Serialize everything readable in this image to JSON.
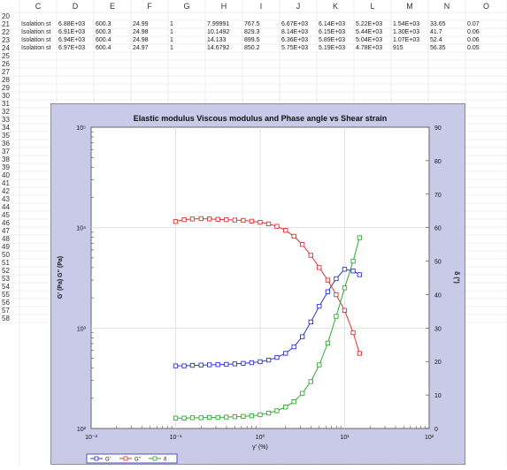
{
  "sheet": {
    "columns": [
      "C",
      "D",
      "E",
      "F",
      "G",
      "H",
      "I",
      "J",
      "K",
      "L",
      "M",
      "N",
      "O"
    ],
    "rows": [
      20,
      21,
      22,
      23,
      24,
      25,
      26,
      27,
      28,
      29,
      30,
      31,
      32,
      33,
      34,
      35,
      36,
      37,
      38,
      39,
      40,
      41,
      42,
      43,
      44,
      45,
      46,
      47,
      48,
      49,
      50,
      51,
      52,
      53,
      54,
      55,
      56,
      57,
      58
    ],
    "data_rows": [
      {
        "row": 21,
        "cells": [
          "Isolation st",
          "6.88E+03",
          "600.3",
          "24.99",
          "1",
          "7.99991",
          "767.5",
          "6.67E+03",
          "6.14E+03",
          "5.22E+03",
          "1.54E+03",
          "33.65",
          "0.07"
        ]
      },
      {
        "row": 22,
        "cells": [
          "Isolation st",
          "6.91E+03",
          "600.3",
          "24.98",
          "1",
          "10.1492",
          "829.3",
          "8.14E+03",
          "6.15E+03",
          "5.44E+03",
          "1.30E+03",
          "41.7",
          "0.06"
        ]
      },
      {
        "row": 23,
        "cells": [
          "Isolation st",
          "6.94E+03",
          "600.4",
          "24.98",
          "1",
          "14.133",
          "899.5",
          "6.36E+03",
          "5.89E+03",
          "5.04E+03",
          "1.07E+03",
          "52.4",
          "0.06"
        ]
      },
      {
        "row": 24,
        "cells": [
          "Isolation st",
          "6.97E+03",
          "600.4",
          "24.97",
          "1",
          "14.6792",
          "850.2",
          "5.75E+03",
          "5.19E+03",
          "4.78E+03",
          "915",
          "56.35",
          "0.05"
        ]
      }
    ]
  },
  "chart_data": {
    "type": "line",
    "title": "Elastic modulus Viscous modulus and Phase angle vs Shear strain",
    "xlabel": "γ' (%)",
    "ylabel": "G' (Pa) G'' (Pa)",
    "y2label": "δ (°)",
    "x_log": true,
    "y_log": true,
    "xlim": [
      0.01,
      100
    ],
    "ylim": [
      100,
      100000
    ],
    "y2lim": [
      0,
      90
    ],
    "x_ticks": [
      "10⁻²",
      "10⁻¹",
      "10⁰",
      "10¹",
      "10²"
    ],
    "y_ticks": [
      "10²",
      "10³",
      "10⁴",
      "10⁵"
    ],
    "y2_ticks": [
      "0",
      "10",
      "20",
      "30",
      "40",
      "50",
      "60",
      "70",
      "80",
      "90"
    ],
    "grid": true,
    "legend": "bottom-left",
    "x": [
      0.1,
      0.126,
      0.158,
      0.2,
      0.251,
      0.316,
      0.398,
      0.501,
      0.631,
      0.794,
      1.0,
      1.26,
      1.58,
      2.0,
      2.51,
      3.16,
      3.98,
      5.01,
      6.31,
      7.94,
      10.0,
      12.6,
      15.0
    ],
    "series": [
      {
        "name": "G'",
        "color": "#3333cc",
        "axis": "y",
        "values": [
          420,
          420,
          425,
          428,
          430,
          432,
          435,
          440,
          445,
          452,
          462,
          480,
          510,
          560,
          650,
          820,
          1150,
          1650,
          2300,
          3100,
          3850,
          3700,
          3400
        ]
      },
      {
        "name": "G''",
        "color": "#dd3333",
        "axis": "y",
        "values": [
          11500,
          12000,
          12200,
          12300,
          12200,
          12100,
          12000,
          11900,
          11800,
          11600,
          11300,
          10900,
          10300,
          9400,
          8200,
          6800,
          5300,
          4000,
          3000,
          2150,
          1500,
          900,
          560
        ]
      },
      {
        "name": "δ",
        "color": "#33aa33",
        "axis": "y2",
        "values": [
          3.1,
          3.1,
          3.2,
          3.2,
          3.3,
          3.3,
          3.4,
          3.5,
          3.6,
          3.8,
          4.1,
          4.6,
          5.3,
          6.4,
          8.0,
          10.5,
          14.0,
          19.0,
          25.5,
          33.5,
          42.0,
          50.0,
          57.0
        ]
      }
    ]
  }
}
